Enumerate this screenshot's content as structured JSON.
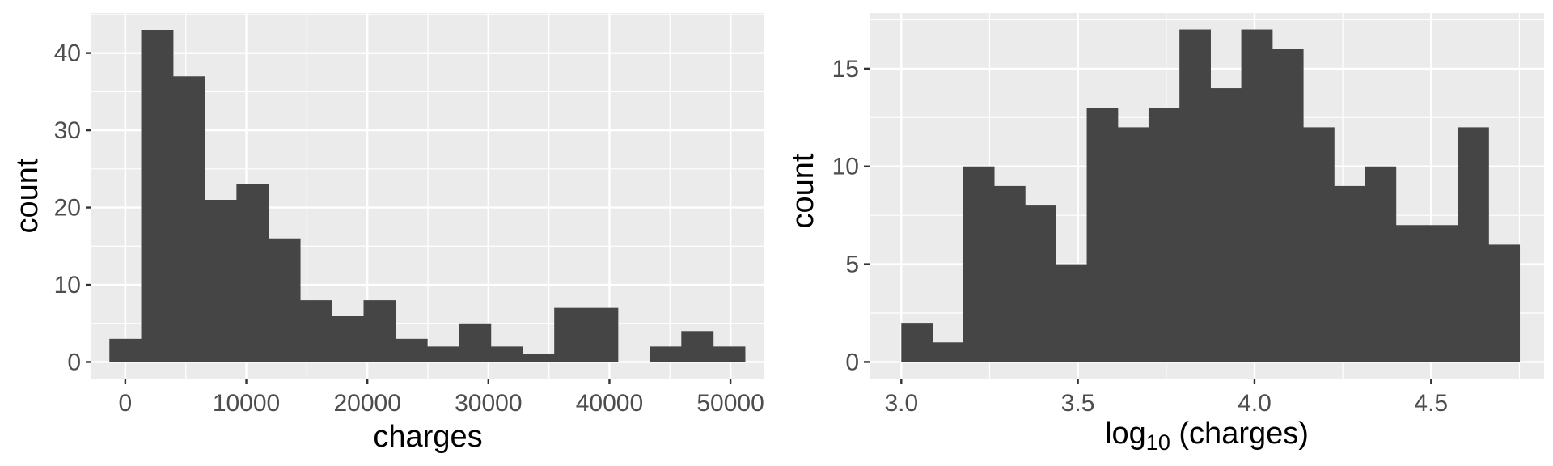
{
  "chart_data": [
    {
      "type": "bar",
      "subtype": "histogram",
      "xlabel": "charges",
      "ylabel": "count",
      "x_ticks": [
        "0",
        "10000",
        "20000",
        "30000",
        "40000",
        "50000"
      ],
      "y_ticks": [
        "0",
        "10",
        "20",
        "30",
        "40"
      ],
      "xlim": [
        -2800,
        52800
      ],
      "ylim": [
        -2.15,
        45.2
      ],
      "bin_width": 2625,
      "bins": [
        {
          "x0": -1312.5,
          "x1": 1312.5,
          "count": 3
        },
        {
          "x0": 1312.5,
          "x1": 3937.5,
          "count": 43
        },
        {
          "x0": 3937.5,
          "x1": 6562.5,
          "count": 37
        },
        {
          "x0": 6562.5,
          "x1": 9187.5,
          "count": 21
        },
        {
          "x0": 9187.5,
          "x1": 11812.5,
          "count": 23
        },
        {
          "x0": 11812.5,
          "x1": 14437.5,
          "count": 16
        },
        {
          "x0": 14437.5,
          "x1": 17062.5,
          "count": 8
        },
        {
          "x0": 17062.5,
          "x1": 19687.5,
          "count": 6
        },
        {
          "x0": 19687.5,
          "x1": 22312.5,
          "count": 8
        },
        {
          "x0": 22312.5,
          "x1": 24937.5,
          "count": 3
        },
        {
          "x0": 24937.5,
          "x1": 27562.5,
          "count": 2
        },
        {
          "x0": 27562.5,
          "x1": 30187.5,
          "count": 5
        },
        {
          "x0": 30187.5,
          "x1": 32812.5,
          "count": 2
        },
        {
          "x0": 32812.5,
          "x1": 35437.5,
          "count": 1
        },
        {
          "x0": 35437.5,
          "x1": 38062.5,
          "count": 7
        },
        {
          "x0": 38062.5,
          "x1": 40687.5,
          "count": 7
        },
        {
          "x0": 40687.5,
          "x1": 43312.5,
          "count": 0
        },
        {
          "x0": 43312.5,
          "x1": 45937.5,
          "count": 2
        },
        {
          "x0": 45937.5,
          "x1": 48562.5,
          "count": 4
        },
        {
          "x0": 48562.5,
          "x1": 51187.5,
          "count": 2
        }
      ],
      "grid": true,
      "bar_color": "#454545",
      "panel_color": "#ebebeb"
    },
    {
      "type": "bar",
      "subtype": "histogram",
      "xlabel_prefix": "log",
      "xlabel_subscript": "10",
      "xlabel_suffix": " (charges)",
      "ylabel": "count",
      "x_ticks": [
        "3.0",
        "3.5",
        "4.0",
        "4.5"
      ],
      "y_ticks": [
        "0",
        "5",
        "10",
        "15"
      ],
      "xlim": [
        2.91,
        4.82
      ],
      "ylim": [
        -0.85,
        17.85
      ],
      "bin_width": 0.0875,
      "bins": [
        {
          "x0": 3.0,
          "x1": 3.0875,
          "count": 2
        },
        {
          "x0": 3.0875,
          "x1": 3.175,
          "count": 1
        },
        {
          "x0": 3.175,
          "x1": 3.2625,
          "count": 10
        },
        {
          "x0": 3.2625,
          "x1": 3.35,
          "count": 9
        },
        {
          "x0": 3.35,
          "x1": 3.4375,
          "count": 8
        },
        {
          "x0": 3.4375,
          "x1": 3.525,
          "count": 5
        },
        {
          "x0": 3.525,
          "x1": 3.6125,
          "count": 13
        },
        {
          "x0": 3.6125,
          "x1": 3.7,
          "count": 12
        },
        {
          "x0": 3.7,
          "x1": 3.7875,
          "count": 13
        },
        {
          "x0": 3.7875,
          "x1": 3.875,
          "count": 17
        },
        {
          "x0": 3.875,
          "x1": 3.9625,
          "count": 14
        },
        {
          "x0": 3.9625,
          "x1": 4.05,
          "count": 17
        },
        {
          "x0": 4.05,
          "x1": 4.1375,
          "count": 16
        },
        {
          "x0": 4.1375,
          "x1": 4.225,
          "count": 12
        },
        {
          "x0": 4.225,
          "x1": 4.3125,
          "count": 9
        },
        {
          "x0": 4.3125,
          "x1": 4.4,
          "count": 10
        },
        {
          "x0": 4.4,
          "x1": 4.4875,
          "count": 7
        },
        {
          "x0": 4.4875,
          "x1": 4.575,
          "count": 7
        },
        {
          "x0": 4.575,
          "x1": 4.6625,
          "count": 12
        },
        {
          "x0": 4.6625,
          "x1": 4.75,
          "count": 6
        }
      ],
      "grid": true,
      "bar_color": "#454545",
      "panel_color": "#ebebeb"
    }
  ]
}
